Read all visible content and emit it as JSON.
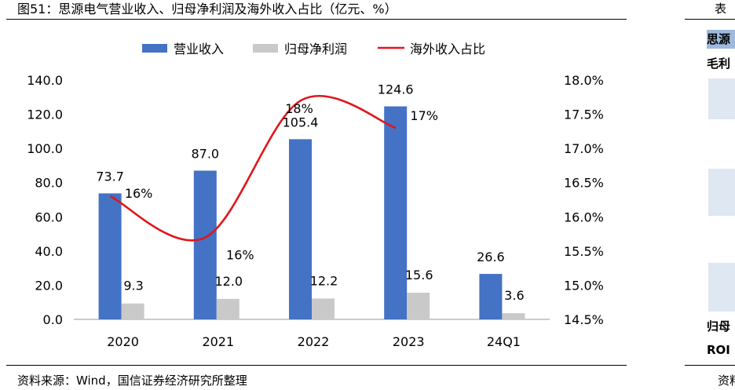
{
  "figure": {
    "title": "图51：思源电气营业收入、归母净利润及海外收入占比（亿元、%）",
    "source": "资料来源：Wind，国信证券经济研究所整理"
  },
  "chart_data": {
    "type": "bar",
    "categories": [
      "2020",
      "2021",
      "2022",
      "2023",
      "24Q1"
    ],
    "series": [
      {
        "name": "营业收入",
        "type": "bar",
        "axis": "left",
        "color": "#4472C4",
        "values": [
          73.7,
          87.0,
          105.4,
          124.6,
          26.6
        ],
        "labels": [
          "73.7",
          "87.0",
          "105.4",
          "124.6",
          "26.6"
        ]
      },
      {
        "name": "归母净利润",
        "type": "bar",
        "axis": "left",
        "color": "#C9C9C9",
        "values": [
          9.3,
          12.0,
          12.2,
          15.6,
          3.6
        ],
        "labels": [
          "9.3",
          "12.0",
          "12.2",
          "15.6",
          "3.6"
        ]
      },
      {
        "name": "海外收入占比",
        "type": "line",
        "axis": "right",
        "color": "#E0161B",
        "smooth": true,
        "values": [
          16.3,
          15.7,
          17.7,
          17.3,
          null
        ],
        "labels": [
          "16%",
          "16%",
          "18%",
          "17%",
          ""
        ]
      }
    ],
    "y_left": {
      "min": 0,
      "max": 140,
      "ticks": [
        0,
        20,
        40,
        60,
        80,
        100,
        120,
        140
      ],
      "tick_labels": [
        "0.0",
        "20.0",
        "40.0",
        "60.0",
        "80.0",
        "100.0",
        "120.0",
        "140.0"
      ]
    },
    "y_right": {
      "min": 14.5,
      "max": 18.0,
      "ticks": [
        14.5,
        15.0,
        15.5,
        16.0,
        16.5,
        17.0,
        17.5,
        18.0
      ],
      "tick_labels": [
        "14.5%",
        "15.0%",
        "15.5%",
        "16.0%",
        "16.5%",
        "17.0%",
        "17.5%",
        "18.0%"
      ]
    },
    "grid": false,
    "legend_position": "top-center"
  },
  "right_panel": {
    "header": "表",
    "band": "思源",
    "row2": "毛利",
    "row_bottom1": "归母",
    "row_bottom2": "ROI",
    "footer": "资料"
  }
}
